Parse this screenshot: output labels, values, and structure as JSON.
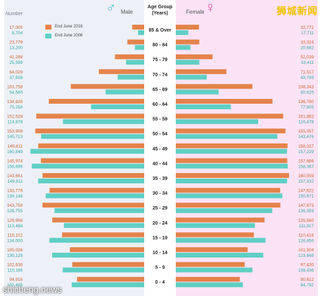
{
  "header": {
    "number_label": "Number",
    "male_label": "Male",
    "female_label": "Female",
    "axis_title_line1": "Age Group",
    "axis_title_line2": "(Years)",
    "male_symbol": "♂",
    "female_symbol": "♀",
    "watermark_top": "狮城新闻",
    "watermark_bottom": "shicheng.news"
  },
  "colors": {
    "y2018": "#e4834a",
    "y2008": "#5fcfc4",
    "male_panel": "#eef0f8",
    "female_panel": "#fbe3f5"
  },
  "chart_data": {
    "type": "bar",
    "orientation": "horizontal population pyramid",
    "categories": [
      "85 & Over",
      "80 - 84",
      "75 - 79",
      "70 - 74",
      "65 - 69",
      "60 - 64",
      "55 - 59",
      "50 - 54",
      "45 - 49",
      "40 - 44",
      "35 - 39",
      "30 - 34",
      "25 - 29",
      "20 - 24",
      "15 - 19",
      "10 - 14",
      "5 - 9",
      "0 - 4"
    ],
    "legend": [
      "End June 2018",
      "End June 2008"
    ],
    "male": {
      "2018": [
        17005,
        23779,
        41288,
        64029,
        103758,
        134828,
        152528,
        153908,
        149811,
        145974,
        143661,
        133776,
        143758,
        129956,
        116102,
        105026,
        101636,
        94916
      ],
      "2008": [
        8704,
        13200,
        25589,
        37508,
        54560,
        75256,
        114878,
        145713,
        160849,
        158896,
        149911,
        139144,
        126755,
        113468,
        134000,
        130128,
        115186,
        102405
      ]
    },
    "female": {
      "2018": [
        32772,
        33324,
        52039,
        71517,
        108343,
        136760,
        151862,
        155057,
        158027,
        157666,
        160059,
        147622,
        147873,
        125560,
        110418,
        101504,
        97430,
        90612
      ],
      "2008": [
        17711,
        20682,
        33411,
        43799,
        60625,
        77905,
        116478,
        143476,
        157229,
        158367,
        157332,
        150671,
        136359,
        111917,
        126856,
        123668,
        108436,
        94792
      ]
    },
    "xlim": [
      0,
      165000
    ]
  }
}
